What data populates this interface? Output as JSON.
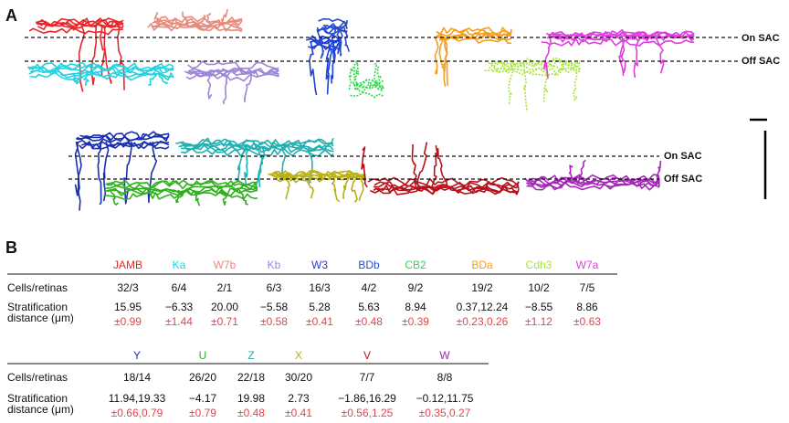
{
  "panel_a": {
    "label": "A",
    "upper_layers": {
      "on": "On SAC",
      "off": "Off SAC"
    },
    "lower_layers": {
      "on": "On SAC",
      "off": "Off SAC"
    }
  },
  "panel_b": {
    "label": "B",
    "error_color": "#e0474c",
    "tables": [
      {
        "columns": [
          {
            "name": "JAMB",
            "color": "#e8262a"
          },
          {
            "name": "Ka",
            "color": "#22d3e0"
          },
          {
            "name": "W7b",
            "color": "#e8897a"
          },
          {
            "name": "Kb",
            "color": "#9c86d6"
          },
          {
            "name": "W3",
            "color": "#1d3fe0"
          },
          {
            "name": "BDb",
            "color": "#2a4ad0"
          },
          {
            "name": "CB2",
            "color": "#2ed84a"
          },
          {
            "name": "BDa",
            "color": "#f5a020"
          },
          {
            "name": "Cdh3",
            "color": "#a6e43a"
          },
          {
            "name": "W7a",
            "color": "#e03ce0"
          }
        ],
        "rows": [
          {
            "label": [
              "Cells/retinas"
            ],
            "values": [
              "32/3",
              "6/4",
              "2/1",
              "6/3",
              "16/3",
              "4/2",
              "9/2",
              "19/2",
              "10/2",
              "7/5"
            ]
          },
          {
            "label": [
              "Stratification",
              "distance (μm)"
            ],
            "values": [
              "15.95",
              "−6.33",
              "20.00",
              "−5.58",
              "5.28",
              "5.63",
              "8.94",
              "0.37,12.24",
              "−8.55",
              "8.86"
            ],
            "errors": [
              "±0.99",
              "±1.44",
              "±0.71",
              "±0.58",
              "±0.41",
              "±0.48",
              "±0.39",
              "±0.23,0.26",
              "±1.12",
              "±0.63"
            ]
          }
        ]
      },
      {
        "columns": [
          {
            "name": "Y",
            "color": "#1a2fb0"
          },
          {
            "name": "U",
            "color": "#2cb01c"
          },
          {
            "name": "Z",
            "color": "#1fb0b0"
          },
          {
            "name": "X",
            "color": "#b8b012"
          },
          {
            "name": "V",
            "color": "#b8101a"
          },
          {
            "name": "W",
            "color": "#a626b8"
          }
        ],
        "rows": [
          {
            "label": [
              "Cells/retinas"
            ],
            "values": [
              "18/14",
              "26/20",
              "22/18",
              "30/20",
              "7/7",
              "8/8"
            ]
          },
          {
            "label": [
              "Stratification",
              "distance (μm)"
            ],
            "values": [
              "11.94,19.33",
              "−4.17",
              "19.98",
              "2.73",
              "−1.86,16.29",
              "−0.12,11.75"
            ],
            "errors": [
              "±0.66,0.79",
              "±0.79",
              "±0.48",
              "±0.41",
              "±0.56,1.25",
              "±0.35,0.27"
            ]
          }
        ]
      }
    ]
  }
}
